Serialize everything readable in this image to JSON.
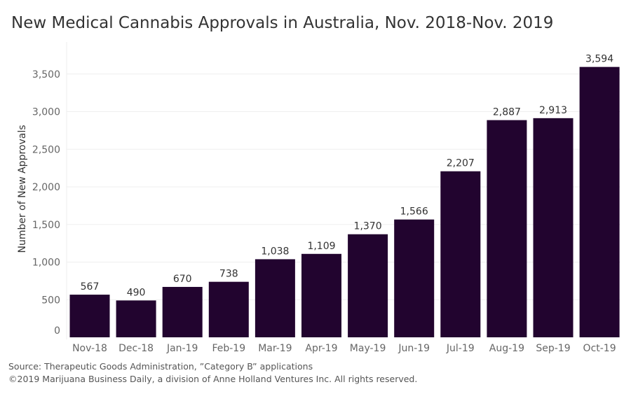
{
  "chart_data": {
    "type": "bar",
    "title": "New Medical Cannabis Approvals in Australia, Nov. 2018-Nov. 2019",
    "xlabel": "",
    "ylabel": "Number of New Approvals",
    "categories": [
      "Nov-18",
      "Dec-18",
      "Jan-19",
      "Feb-19",
      "Mar-19",
      "Apr-19",
      "May-19",
      "Jun-19",
      "Jul-19",
      "Aug-19",
      "Sep-19",
      "Oct-19"
    ],
    "values": [
      567,
      490,
      670,
      738,
      1038,
      1109,
      1370,
      1566,
      2207,
      2887,
      2913,
      3594
    ],
    "data_labels": [
      "567",
      "490",
      "670",
      "738",
      "1,038",
      "1,109",
      "1,370",
      "1,566",
      "2,207",
      "2,887",
      "2,913",
      "3,594"
    ],
    "yticks": [
      0,
      500,
      1000,
      1500,
      2000,
      2500,
      3000,
      3500
    ],
    "ytick_labels": [
      "0",
      "500",
      "1,000",
      "1,500",
      "2,000",
      "2,500",
      "3,000",
      "3,500"
    ],
    "ylim": [
      0,
      3600
    ],
    "grid": true,
    "bar_color": "#22042f"
  },
  "footer": {
    "source": "Source: Therapeutic Goods Administration, ”Category B” applications",
    "copyright": "©2019 Marijuana Business Daily, a division of Anne Holland Ventures Inc. All rights reserved."
  }
}
